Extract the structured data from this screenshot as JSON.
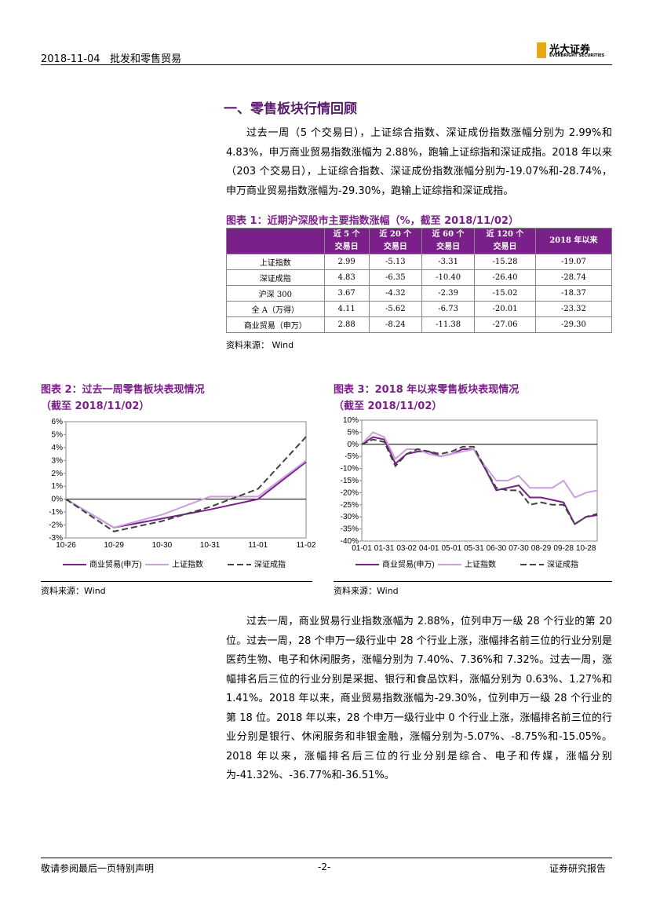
{
  "header": {
    "date": "2018-11-04",
    "industry": "批发和零售贸易",
    "logo": "光大证券",
    "logo_en": "EVERBRIGHT SECURITIES"
  },
  "section_title": "一、零售板块行情回顾",
  "paragraph1": "过去一周（5 个交易日），上证综合指数、深证成份指数涨幅分别为 2.99%和 4.83%，申万商业贸易指数涨幅为 2.88%，跑输上证综指和深证成指。2018 年以来（203 个交易日），上证综合指数、深证成份指数涨幅分别为-19.07%和-28.74%，申万商业贸易指数涨幅为-29.30%，跑输上证综指和深证成指。",
  "table": {
    "caption": "图表 1：近期沪深股市主要指数涨幅（%，截至 2018/11/02）",
    "header": [
      [
        "近 5 个",
        "交易日"
      ],
      [
        "近 20 个",
        "交易日"
      ],
      [
        "近 60 个",
        "交易日"
      ],
      [
        "近 120 个",
        "交易日"
      ],
      [
        "2018 年以来"
      ]
    ],
    "rows": [
      [
        "上证指数",
        "2.99",
        "-5.13",
        "-3.31",
        "-15.28",
        "-19.07"
      ],
      [
        "深证成指",
        "4.83",
        "-6.35",
        "-10.40",
        "-26.40",
        "-28.74"
      ],
      [
        "沪深 300",
        "3.67",
        "-4.32",
        "-2.39",
        "-15.02",
        "-18.37"
      ],
      [
        "全 A（万得）",
        "4.11",
        "-5.62",
        "-6.73",
        "-20.01",
        "-23.32"
      ],
      [
        "商业贸易（申万）",
        "2.88",
        "-8.24",
        "-11.38",
        "-27.06",
        "-29.30"
      ]
    ],
    "source": "资料来源： Wind"
  },
  "chart_data": [
    {
      "type": "line",
      "title": "图表 2：过去一周零售板块表现情况",
      "subtitle": "（截至 2018/11/02）",
      "categories": [
        "10-26",
        "10-29",
        "10-30",
        "10-31",
        "11-01",
        "11-02"
      ],
      "ylim": [
        -3,
        6
      ],
      "yticks": [
        {
          "value": -3,
          "label": "-3%"
        },
        {
          "value": -2,
          "label": "-2%"
        },
        {
          "value": -1,
          "label": "-1%"
        },
        {
          "value": 0,
          "label": "0%"
        },
        {
          "value": 1,
          "label": "1%"
        },
        {
          "value": 2,
          "label": "2%"
        },
        {
          "value": 3,
          "label": "3%"
        },
        {
          "value": 4,
          "label": "4%"
        },
        {
          "value": 5,
          "label": "5%"
        },
        {
          "value": 6,
          "label": "6%"
        }
      ],
      "series": [
        {
          "name": "商业贸易(申万)",
          "color": "#7b1f8a",
          "line_style": "solid",
          "values": [
            0,
            -2.2,
            -1.5,
            -0.8,
            0,
            2.88
          ]
        },
        {
          "name": "上证指数",
          "color": "#c9a0dc",
          "line_style": "solid",
          "values": [
            0,
            -2.2,
            -1.2,
            0.2,
            0.2,
            2.99
          ]
        },
        {
          "name": "深证成指",
          "color": "#404040",
          "line_style": "dashed",
          "values": [
            0,
            -2.5,
            -1.7,
            -0.6,
            0.8,
            4.83
          ]
        }
      ],
      "source": "资料来源：Wind"
    },
    {
      "type": "line",
      "title": "图表 3：2018 年以来零售板块表现情况",
      "subtitle": "（截至 2018/11/02）",
      "categories": [
        "01-01",
        null,
        "01-31",
        null,
        "03-02",
        null,
        "04-01",
        null,
        "05-01",
        null,
        "05-31",
        null,
        "06-30",
        null,
        "07-30",
        null,
        "08-29",
        null,
        "09-28",
        null,
        "10-28",
        null
      ],
      "ylim": [
        -40,
        10
      ],
      "yticks": [
        {
          "value": -40,
          "label": "-40%"
        },
        {
          "value": -35,
          "label": "-35%"
        },
        {
          "value": -30,
          "label": "-30%"
        },
        {
          "value": -25,
          "label": "-25%"
        },
        {
          "value": -20,
          "label": "-20%"
        },
        {
          "value": -15,
          "label": "-15%"
        },
        {
          "value": -10,
          "label": "-10%"
        },
        {
          "value": -5,
          "label": "-5%"
        },
        {
          "value": 0,
          "label": "0%"
        },
        {
          "value": 5,
          "label": "5%"
        },
        {
          "value": 10,
          "label": "10%"
        }
      ],
      "series": [
        {
          "name": "商业贸易(申万)",
          "color": "#7b1f8a",
          "line_style": "solid",
          "values": [
            0,
            3,
            2,
            -8,
            -4,
            -3,
            -3,
            -5,
            -4,
            -2,
            -2,
            -10,
            -19,
            -18,
            -17,
            -22,
            -22,
            -23,
            -24,
            -33,
            -30,
            -29.3
          ]
        },
        {
          "name": "上证指数",
          "color": "#c9a0dc",
          "line_style": "solid",
          "values": [
            0,
            5,
            3,
            -6,
            -2,
            -2,
            -4,
            -5,
            -4,
            -3,
            -2,
            -9,
            -15,
            -15,
            -13,
            -18,
            -18,
            -18,
            -15,
            -22,
            -20,
            -19.07
          ]
        },
        {
          "name": "深证成指",
          "color": "#404040",
          "line_style": "dashed",
          "values": [
            0,
            2,
            1,
            -9,
            -4,
            -2,
            -3,
            -4,
            -3,
            -1,
            -1,
            -10,
            -18,
            -19,
            -19,
            -25,
            -24,
            -25,
            -25,
            -33,
            -30,
            -28.74
          ]
        }
      ],
      "source": "资料来源：Wind"
    }
  ],
  "paragraph2": "过去一周，商业贸易行业指数涨幅为 2.88%，位列申万一级 28 个行业的第 20 位。过去一周，28 个申万一级行业中 28 个行业上涨，涨幅排名前三位的行业分别是医药生物、电子和休闲服务，涨幅分别为 7.40%、7.36%和 7.32%。过去一周，涨幅排名后三位的行业分别是采掘、银行和食品饮料，涨幅分别为 0.63%、1.27%和 1.41%。2018 年以来，商业贸易指数涨幅为-29.30%，位列申万一级 28 个行业的第 18 位。2018 年以来，28 个申万一级行业中 0 个行业上涨，涨幅排名前三位的行业分别是银行、休闲服务和非银金融，涨幅分别为-5.07%、-8.75%和-15.05%。2018 年以来，涨幅排名后三位的行业分别是综合、电子和传媒，涨幅分别为-41.32%、-36.77%和-36.51%。",
  "footer": {
    "left": "敬请参阅最后一页特别声明",
    "page": "-2-",
    "right": "证券研究报告"
  }
}
